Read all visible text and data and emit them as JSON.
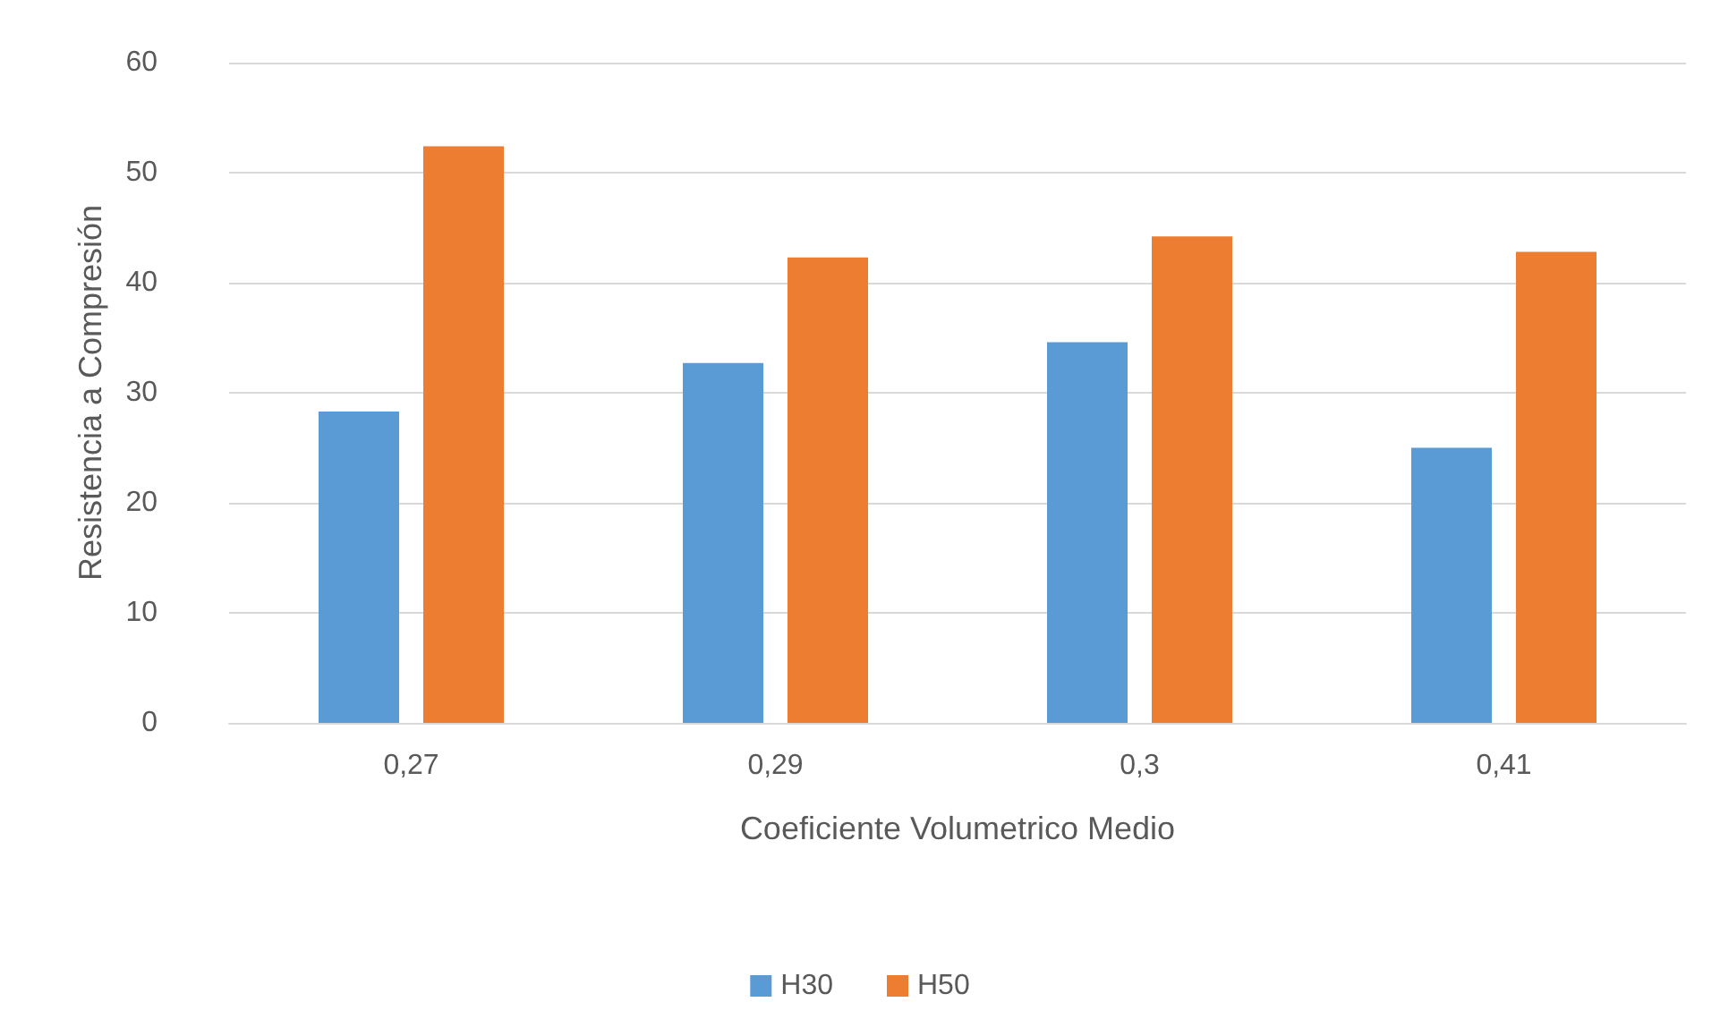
{
  "chart_data": {
    "type": "bar",
    "xlabel": "Coeficiente Volumetrico Medio",
    "ylabel": "Resistencia a Compresión",
    "categories": [
      "0,27",
      "0,29",
      "0,3",
      "0,41"
    ],
    "series": [
      {
        "name": "H30",
        "color": "#5b9bd5",
        "values": [
          28.3,
          32.7,
          34.6,
          25.0
        ]
      },
      {
        "name": "H50",
        "color": "#ed7d31",
        "values": [
          52.4,
          42.3,
          44.2,
          42.8
        ]
      }
    ],
    "ylim": [
      0,
      60
    ],
    "yticks": [
      0,
      10,
      20,
      30,
      40,
      50,
      60
    ],
    "grid": "y",
    "legend": "bottom"
  }
}
